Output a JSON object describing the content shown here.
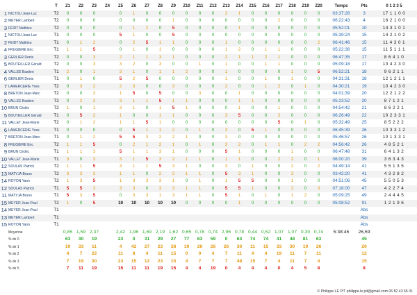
{
  "headers": {
    "rank": "",
    "name": "",
    "track": "T",
    "zones": [
      "Z1",
      "Z2",
      "Z3",
      "Z4",
      "Z5",
      "Z6",
      "Z7",
      "Z8",
      "Z9",
      "Z10",
      "Z11",
      "Z12",
      "Z13",
      "Z14",
      "Z15",
      "Z16",
      "Z17",
      "Z18",
      "Z19",
      "Z20"
    ],
    "time": "Temps",
    "pts": "Pts",
    "dist": "0 1 2 3 5"
  },
  "rows": [
    {
      "r": "1",
      "n": "NICTOU Jean-Luc",
      "t": "T2",
      "z": [
        "0",
        "0",
        "0",
        "",
        "0",
        "1",
        "0",
        "0",
        "0",
        "0",
        "0",
        "0",
        "2",
        "1",
        "0",
        "0",
        "0",
        "0",
        "0",
        "0"
      ],
      "time": "03:37:28",
      "pts": "3",
      "d": "17 1 1 0 0"
    },
    {
      "r": "2",
      "n": "MEYER Lambert",
      "t": "T2",
      "z": [
        "0",
        "0",
        "0",
        "",
        "0",
        "0",
        "0",
        "0",
        "1",
        "0",
        "0",
        "0",
        "0",
        "0",
        "0",
        "0",
        "2",
        "0",
        "0",
        "0"
      ],
      "time": "06:22:43",
      "pts": "4",
      "d": "16 2 1 0 0"
    },
    {
      "r": "3",
      "n": "FEIDT Mathieu",
      "t": "T2",
      "z": [
        "0",
        "0",
        "0",
        "",
        "0",
        "1",
        "2",
        "0",
        "5",
        "0",
        "0",
        "0",
        "0",
        "1",
        "0",
        "0",
        "0",
        "0",
        "0",
        "0"
      ],
      "time": "05:52:01",
      "pts": "10",
      "d": "14 3 1 0 1"
    },
    {
      "r": "1",
      "n": "NICTOU Jean-Luc",
      "t": "T1",
      "z": [
        "0",
        "0",
        "0",
        "",
        "5",
        "1",
        "0",
        "0",
        "5",
        "0",
        "0",
        "0",
        "0",
        "0",
        "0",
        "0",
        "0",
        "0",
        "0",
        "0"
      ],
      "time": "05:39:24",
      "pts": "15",
      "d": "14 2 1 0 2"
    },
    {
      "r": "2",
      "n": "FEIDT Mathieu",
      "t": "T1",
      "z": [
        "0",
        "1",
        "2",
        "",
        "0",
        "2",
        "5",
        "1",
        "1",
        "0",
        "0",
        "0",
        "1",
        "0",
        "0",
        "0",
        "0",
        "0",
        "0",
        "2"
      ],
      "time": "06:41:46",
      "pts": "15",
      "d": "11 4 3 0 1"
    },
    {
      "r": "4",
      "n": "FRUGIERE Eric",
      "t": "T1",
      "z": [
        "1",
        "1",
        "5",
        "",
        "0",
        "1",
        "0",
        "1",
        "0",
        "0",
        "0",
        "0",
        "1",
        "2",
        "0",
        "1",
        "1",
        "0",
        "0",
        "0"
      ],
      "time": "05:22:36",
      "pts": "15",
      "d": "11 5 1 1 1"
    },
    {
      "r": "3",
      "n": "GERLIER Denis",
      "t": "T2",
      "z": [
        "0",
        "0",
        "3",
        "",
        "2",
        "1",
        "1",
        "3",
        "1",
        "0",
        "0",
        "0",
        "2",
        "1",
        "1",
        "2",
        "1",
        "0",
        "0",
        "0"
      ],
      "time": "06:47:35",
      "pts": "17",
      "d": "8 6 4 1 0"
    },
    {
      "r": "5",
      "n": "BOUTEILLER Gérald",
      "t": "T2",
      "z": [
        "0",
        "0",
        "3",
        "",
        "3",
        "2",
        "0",
        "3",
        "0",
        "0",
        "1",
        "0",
        "1",
        "0",
        "0",
        "1",
        "1",
        "0",
        "0",
        "0"
      ],
      "time": "05:09:18",
      "pts": "17",
      "d": "10 4 2 3 0"
    },
    {
      "r": "4",
      "n": "VALLEE Bastien",
      "t": "T1",
      "z": [
        "2",
        "0",
        "1",
        "",
        "3",
        "1",
        "0",
        "1",
        "1",
        "2",
        "0",
        "0",
        "1",
        "0",
        "0",
        "0",
        "0",
        "1",
        "0",
        "5"
      ],
      "time": "06:52:21",
      "pts": "18",
      "d": "9 6 2 1 1"
    },
    {
      "r": "6",
      "n": "GERLIER Denis",
      "t": "T1",
      "z": [
        "0",
        "1",
        "0",
        "",
        "5",
        "2",
        "5",
        "0",
        "0",
        "0",
        "0",
        "0",
        "1",
        "0",
        "0",
        "1",
        "0",
        "1",
        "0",
        "0"
      ],
      "time": "04:31:31",
      "pts": "18",
      "d": "12 1 2 1 1"
    },
    {
      "r": "7",
      "n": "LAMERCERIE Yves",
      "t": "T2",
      "z": [
        "0",
        "3",
        "2",
        "",
        "2",
        "3",
        "0",
        "0",
        "3",
        "0",
        "0",
        "0",
        "2",
        "0",
        "0",
        "1",
        "2",
        "0",
        "1",
        "0"
      ],
      "time": "04:30:21",
      "pts": "19",
      "d": "10 4 2 3 0"
    },
    {
      "r": "8",
      "n": "BRETON Jean-Marc",
      "t": "T2",
      "z": [
        "0",
        "0",
        "3",
        "",
        "1",
        "5",
        "0",
        "5",
        "0",
        "0",
        "3",
        "0",
        "0",
        "1",
        "0",
        "0",
        "0",
        "0",
        "0",
        "0"
      ],
      "time": "04:01:39",
      "pts": "20",
      "d": "12 2 1 2 2"
    },
    {
      "r": "9",
      "n": "VALLEE Bastien",
      "t": "T2",
      "z": [
        "0",
        "2",
        "2",
        "",
        "3",
        "1",
        "1",
        "5",
        "1",
        "1",
        "0",
        "0",
        "0",
        "1",
        "1",
        "0",
        "0",
        "0",
        "0",
        "0"
      ],
      "time": "05:23:52",
      "pts": "20",
      "d": "8 7 1 2 1"
    },
    {
      "r": "10",
      "n": "BRUN Cédric",
      "t": "T2",
      "z": [
        "1",
        "0",
        "1",
        "",
        "3",
        "1",
        "0",
        "1",
        "5",
        "1",
        "0",
        "0",
        "0",
        "1",
        "0",
        "0",
        "1",
        "0",
        "0",
        "0"
      ],
      "time": "04:54:42",
      "pts": "21",
      "d": "8 6 2 2 1"
    },
    {
      "r": "5",
      "n": "BOUTEILLER Gérald",
      "t": "T1",
      "z": [
        "0",
        "5",
        "2",
        "",
        "1",
        "0",
        "0",
        "1",
        "1",
        "0",
        "0",
        "0",
        "3",
        "5",
        "0",
        "0",
        "2",
        "0",
        "0",
        "0"
      ],
      "time": "06:26:49",
      "pts": "22",
      "d": "10 2 3 3 1"
    },
    {
      "r": "11",
      "n": "VALLET Jean-Marie",
      "t": "T2",
      "z": [
        "0",
        "1",
        "2",
        "",
        "1",
        "1",
        "5",
        "1",
        "0",
        "0",
        "0",
        "0",
        "0",
        "0",
        "0",
        "0",
        "5",
        "0",
        "1",
        "0"
      ],
      "time": "05:32:49",
      "pts": "25",
      "d": "8 5 2 2 2"
    },
    {
      "r": "6",
      "n": "LAMERCERIE Yves",
      "t": "T1",
      "z": [
        "0",
        "0",
        "0",
        "",
        "0",
        "5",
        "1",
        "1",
        "2",
        "0",
        "1",
        "0",
        "3",
        "0",
        "5",
        "1",
        "0",
        "0",
        "0",
        "0"
      ],
      "time": "06:45:39",
      "pts": "26",
      "d": "10 3 3 1 2"
    },
    {
      "r": "7",
      "n": "BRETON Jean-Marc",
      "t": "T1",
      "z": [
        "0",
        "1",
        "2",
        "",
        "5",
        "5",
        "3",
        "2",
        "2",
        "1",
        "0",
        "0",
        "3",
        "0",
        "0",
        "0",
        "0",
        "0",
        "0",
        "0"
      ],
      "time": "05:46:57",
      "pts": "26",
      "d": "10 1 3 3 1"
    },
    {
      "r": "8",
      "n": "FRUGIERE Eric",
      "t": "T2",
      "z": [
        "1",
        "1",
        "5",
        "",
        "0",
        "2",
        "1",
        "2",
        "1",
        "0",
        "1",
        "0",
        "3",
        "2",
        "0",
        "1",
        "1",
        "0",
        "2",
        "2"
      ],
      "time": "04:56:42",
      "pts": "26",
      "d": "4 8 5 2 1"
    },
    {
      "r": "9",
      "n": "BRUN Cédric",
      "t": "T1",
      "z": [
        "1",
        "1",
        "3",
        "",
        "5",
        "1",
        "1",
        "3",
        "1",
        "0",
        "0",
        "0",
        "5",
        "1",
        "0",
        "0",
        "0",
        "1",
        "0",
        "0"
      ],
      "time": "06:47:48",
      "pts": "31",
      "d": "6 4 1 3 2"
    },
    {
      "r": "10",
      "n": "VALLET Jean-Marie",
      "t": "T1",
      "z": [
        "3",
        "0",
        "3",
        "",
        "3",
        "1",
        "5",
        "3",
        "2",
        "1",
        "1",
        "0",
        "1",
        "1",
        "0",
        "0",
        "2",
        "2",
        "0",
        "1"
      ],
      "time": "06:00:20",
      "pts": "39",
      "d": "3 6 3 4 3"
    },
    {
      "r": "12",
      "n": "SOULAS Patrick",
      "t": "T2",
      "z": [
        "1",
        "1",
        "5",
        "",
        "3",
        "1",
        "1",
        "5",
        "3",
        "1",
        "0",
        "0",
        "3",
        "0",
        "1",
        "0",
        "0",
        "2",
        "0",
        "2"
      ],
      "time": "04:49:14",
      "pts": "41",
      "d": "5 5 1 3 5"
    },
    {
      "r": "13",
      "n": "MATYJA Bruno",
      "t": "T2",
      "z": [
        "3",
        "3",
        "3",
        "",
        "1",
        "1",
        "0",
        "2",
        "2",
        "1",
        "1",
        "0",
        "5",
        "3",
        "1",
        "0",
        "0",
        "3",
        "0",
        "0"
      ],
      "time": "03:42:20",
      "pts": "41",
      "d": "4 3 2 8 2"
    },
    {
      "r": "14",
      "n": "ROYON Yann",
      "t": "T2",
      "z": [
        "1",
        "3",
        "5",
        "",
        "1",
        "3",
        "3",
        "3",
        "1",
        "0",
        "1",
        "0",
        "1",
        "5",
        "5",
        "0",
        "0",
        "1",
        "0",
        "0"
      ],
      "time": "04:51:06",
      "pts": "45",
      "d": "5 5 0 5 3"
    },
    {
      "r": "12",
      "n": "SOULAS Patrick",
      "t": "T1",
      "z": [
        "5",
        "5",
        "3",
        "",
        "3",
        "3",
        "0",
        "3",
        "3",
        "1",
        "1",
        "0",
        "5",
        "5",
        "1",
        "0",
        "0",
        "2",
        "0",
        "3"
      ],
      "time": "07:18:00",
      "pts": "47",
      "d": "4 2 2 7 4"
    },
    {
      "r": "11",
      "n": "MATYJA Bruno",
      "t": "T1",
      "z": [
        "5",
        "3",
        "5",
        "",
        "0",
        "3",
        "3",
        "1",
        "3",
        "1",
        "1",
        "0",
        "5",
        "1",
        "0",
        "1",
        "0",
        "1",
        "2",
        "0"
      ],
      "time": "05:09:25",
      "pts": "49",
      "d": "2 4 4 4 5"
    },
    {
      "r": "15",
      "n": "MEYER Jean-Paul",
      "t": "T2",
      "z": [
        "1",
        "0",
        "5",
        "",
        "10",
        "10",
        "10",
        "10",
        "10",
        "0",
        "0",
        "0",
        "0",
        "1",
        "0",
        "0",
        "0",
        "0",
        "0",
        "0"
      ],
      "time": "05:08:52",
      "pts": "91",
      "d": "1 2 1 9 6"
    },
    {
      "r": "14",
      "n": "MEYER Jean-Paul",
      "t": "T1",
      "z": [
        "",
        "",
        "",
        "",
        "",
        "",
        "",
        "",
        "",
        "",
        "",
        "",
        "",
        "",
        "",
        "",
        "",
        "",
        "",
        ""
      ],
      "time": "",
      "pts": "Abs",
      "d": ""
    },
    {
      "r": "13",
      "n": "MEYER Lambert",
      "t": "T1",
      "z": [
        "",
        "",
        "",
        "",
        "",
        "",
        "",
        "",
        "",
        "",
        "",
        "",
        "",
        "",
        "",
        "",
        "",
        "",
        "",
        ""
      ],
      "time": "",
      "pts": "Abs",
      "d": ""
    },
    {
      "r": "15",
      "n": "ROYON Yann",
      "t": "T1",
      "z": [
        "",
        "",
        "",
        "",
        "",
        "",
        "",
        "",
        "",
        "",
        "",
        "",
        "",
        "",
        "",
        "",
        "",
        "",
        "",
        ""
      ],
      "time": "",
      "pts": "Abs",
      "d": ""
    }
  ],
  "stats": {
    "mean": {
      "label": "Moyenne",
      "z": [
        "0,85",
        "1,59",
        "2,37",
        "",
        "2,42",
        "1,96",
        "1,69",
        "2,19",
        "1,62",
        "0,65",
        "0,78",
        "0,74",
        "2,96",
        "0,78",
        "0,44",
        "0,52",
        "1,07",
        "1,07",
        "0,30",
        "0,74"
      ],
      "time": "5:38:45",
      "pts": "26,59"
    },
    "p0": {
      "label": "% de 0",
      "z": [
        "63",
        "30",
        "19",
        "",
        "23",
        "0",
        "31",
        "29",
        "27",
        "77",
        "63",
        "59",
        "0",
        "63",
        "74",
        "74",
        "41",
        "48",
        "81",
        "63"
      ],
      "pts": "45"
    },
    "p1": {
      "label": "% de 1",
      "z": [
        "19",
        "33",
        "11",
        "",
        "4",
        "42",
        "27",
        "23",
        "38",
        "19",
        "26",
        "26",
        "26",
        "30",
        "11",
        "15",
        "33",
        "30",
        "19",
        "26"
      ],
      "pts": "20"
    },
    "p2": {
      "label": "% de 2",
      "z": [
        "4",
        "7",
        "22",
        "",
        "11",
        "8",
        "4",
        "11",
        "15",
        "0",
        "0",
        "4",
        "7",
        "11",
        "4",
        "4",
        "19",
        "11",
        "7",
        "11"
      ],
      "pts": "12"
    },
    "p3": {
      "label": "% de 3",
      "z": [
        "7",
        "19",
        "30",
        "",
        "23",
        "15",
        "12",
        "23",
        "15",
        "4",
        "7",
        "7",
        "7",
        "48",
        "15",
        "7",
        "4",
        "11",
        "7",
        "4"
      ],
      "pts": "15"
    },
    "p5": {
      "label": "% de 5",
      "z": [
        "7",
        "11",
        "19",
        "",
        "15",
        "11",
        "11",
        "19",
        "15",
        "4",
        "4",
        "19",
        "0",
        "4",
        "4",
        "4",
        "0",
        "4",
        "5",
        "8"
      ],
      "pts": "8"
    }
  },
  "footer": {
    "credit": "© Philippe LE PIT  philippe.le.pit@gmail.com  06 82 43 65 01"
  }
}
